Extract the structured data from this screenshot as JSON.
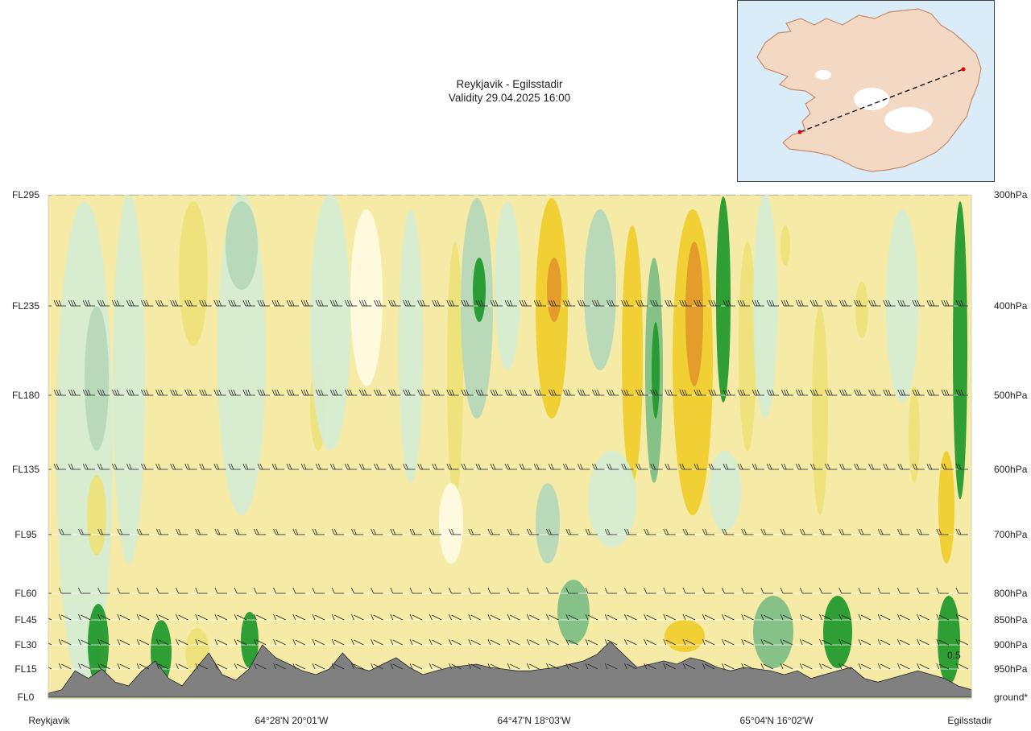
{
  "header": {
    "title": "Reykjavik - Egilsstadir",
    "validity": "Validity 29.04.2025 16:00"
  },
  "inset_map": {
    "route_from": "Reykjavik",
    "route_to": "Egilsstadir",
    "colors": {
      "sea": "#d9ecf8",
      "land": "#f3d9c4",
      "ice": "#ffffff",
      "route": "#111111",
      "endpoint": "#e00000"
    }
  },
  "chart_data": {
    "type": "heatmap",
    "title": "Reykjavik - Egilsstadir",
    "subtitle": "Validity 29.04.2025 16:00",
    "left_axis_labels": [
      "FL295",
      "FL235",
      "FL180",
      "FL135",
      "FL95",
      "FL60",
      "FL45",
      "FL30",
      "FL15",
      "FL0"
    ],
    "right_axis_labels": [
      "300hPa",
      "400hPa",
      "500hPa",
      "600hPa",
      "700hPa",
      "800hPa",
      "850hPa",
      "900hPa",
      "950hPa",
      "ground*"
    ],
    "levels": [
      {
        "fl": 295,
        "hpa": "300hPa"
      },
      {
        "fl": 235,
        "hpa": "400hPa"
      },
      {
        "fl": 180,
        "hpa": "500hPa"
      },
      {
        "fl": 135,
        "hpa": "600hPa"
      },
      {
        "fl": 95,
        "hpa": "700hPa"
      },
      {
        "fl": 60,
        "hpa": "800hPa"
      },
      {
        "fl": 45,
        "hpa": "850hPa"
      },
      {
        "fl": 30,
        "hpa": "900hPa"
      },
      {
        "fl": 15,
        "hpa": "950hPa"
      },
      {
        "fl": 0,
        "hpa": "ground*"
      }
    ],
    "x_labels": [
      "Reykjavik",
      "64°28'N 20°01'W",
      "64°47'N 18°03'W",
      "65°04'N 16°02'W",
      "Egilsstadir"
    ],
    "ylim": [
      0,
      295
    ],
    "terrain_fl": [
      2,
      4,
      14,
      10,
      15,
      8,
      6,
      14,
      20,
      10,
      6,
      15,
      25,
      12,
      9,
      15,
      30,
      22,
      18,
      14,
      12,
      15,
      25,
      16,
      14,
      18,
      22,
      16,
      12,
      14,
      16,
      17,
      18,
      16,
      15,
      14,
      14,
      15,
      16,
      18,
      20,
      24,
      32,
      24,
      16,
      18,
      20,
      18,
      22,
      20,
      16,
      14,
      16,
      15,
      14,
      12,
      14,
      10,
      12,
      14,
      16,
      10,
      8,
      10,
      12,
      14,
      12,
      10,
      6,
      4
    ],
    "field_colors": {
      "strong_descent": "#239a2e",
      "moderate_descent": "#7fbf86",
      "weak_descent": "#b6d8b8",
      "light_descent": "#d6ecd2",
      "neutral": "#fffbe0",
      "light_ascent": "#f5eba6",
      "weak_ascent": "#ede27a",
      "moderate_ascent": "#f0cf2e",
      "strong_ascent": "#e39a2a",
      "terrain": "#808080"
    },
    "isolated_label": "0.5"
  }
}
